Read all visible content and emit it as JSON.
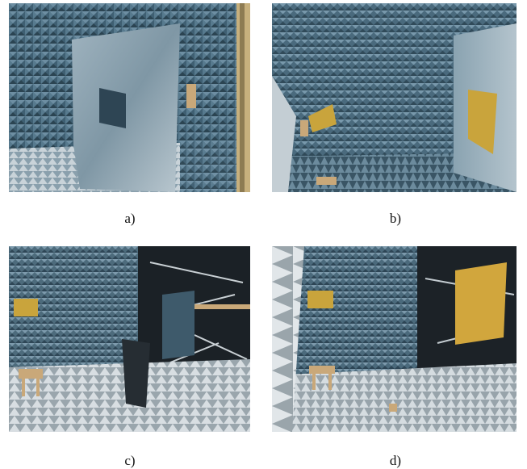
{
  "figure": {
    "panels": [
      {
        "id": "a",
        "caption": "a)"
      },
      {
        "id": "b",
        "caption": "b)"
      },
      {
        "id": "c",
        "caption": "c)"
      },
      {
        "id": "d",
        "caption": "d)"
      }
    ],
    "colors": {
      "absorber_blue": "#4f6f82",
      "absorber_light": "#8fa8b8",
      "absorber_dark": "#2c4250",
      "floor_gray": "#b9c2c8",
      "panel_gold": "#c9a43c",
      "wood_stand": "#c9a879",
      "door_dark": "#1a1d20"
    }
  }
}
